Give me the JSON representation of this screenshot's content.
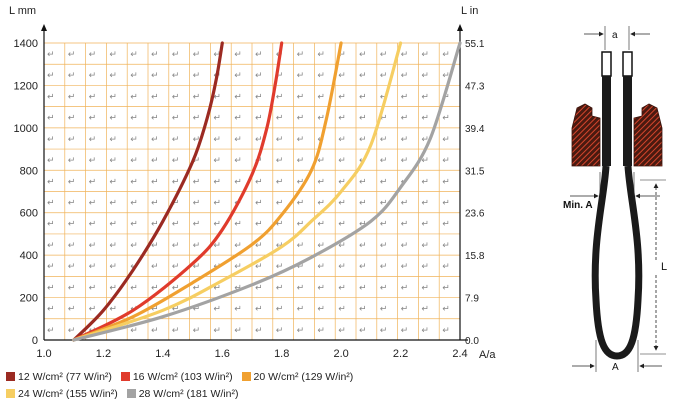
{
  "chart_data": {
    "type": "line",
    "x_label": "A/a",
    "y_left_label": "L mm",
    "y_right_label": "L in",
    "xlim": [
      1.0,
      2.4
    ],
    "ylim": [
      0,
      1400
    ],
    "x_ticks": [
      "1.0",
      "1.2",
      "1.4",
      "1.6",
      "1.8",
      "2.0",
      "2.2",
      "2.4"
    ],
    "y_ticks_left": [
      "0",
      "200",
      "400",
      "600",
      "800",
      "1000",
      "1200",
      "1400"
    ],
    "y_ticks_right": [
      "0.0",
      "7.9",
      "15.8",
      "23.6",
      "31.5",
      "39.4",
      "47.3",
      "55.1"
    ],
    "grid": true,
    "legend_position": "bottom",
    "series": [
      {
        "name": "12 W/cm² (77 W/in²)",
        "color": "#9b2a22",
        "x": [
          1.1,
          1.2,
          1.3,
          1.4,
          1.5,
          1.55,
          1.58,
          1.6
        ],
        "y": [
          0,
          140,
          330,
          560,
          840,
          1050,
          1230,
          1400
        ]
      },
      {
        "name": "16 W/cm² (103 W/in²)",
        "color": "#e03b2c",
        "x": [
          1.1,
          1.3,
          1.5,
          1.6,
          1.7,
          1.75,
          1.78,
          1.8
        ],
        "y": [
          0,
          140,
          360,
          520,
          780,
          1000,
          1220,
          1400
        ]
      },
      {
        "name": "20 W/cm² (129 W/in²)",
        "color": "#f0a030",
        "x": [
          1.1,
          1.3,
          1.5,
          1.7,
          1.8,
          1.9,
          1.95,
          2.0
        ],
        "y": [
          0,
          110,
          270,
          450,
          590,
          800,
          1040,
          1400
        ]
      },
      {
        "name": "24 W/cm² (155 W/in²)",
        "color": "#f6ce62",
        "x": [
          1.1,
          1.4,
          1.6,
          1.8,
          1.9,
          2.0,
          2.1,
          2.2
        ],
        "y": [
          0,
          140,
          280,
          440,
          560,
          700,
          920,
          1400
        ]
      },
      {
        "name": "28 W/cm² (181 W/in²)",
        "color": "#a3a3a3",
        "x": [
          1.1,
          1.4,
          1.7,
          1.9,
          2.1,
          2.2,
          2.3,
          2.4
        ],
        "y": [
          0,
          110,
          260,
          390,
          560,
          720,
          950,
          1400
        ]
      }
    ]
  },
  "diagram": {
    "label_a": "a",
    "label_min_a": "Min. A",
    "label_L": "L",
    "label_A": "A"
  },
  "colors": {
    "grid": "#f0b35a",
    "accent": "#1a1a1a",
    "hatch": "#c0392b"
  }
}
